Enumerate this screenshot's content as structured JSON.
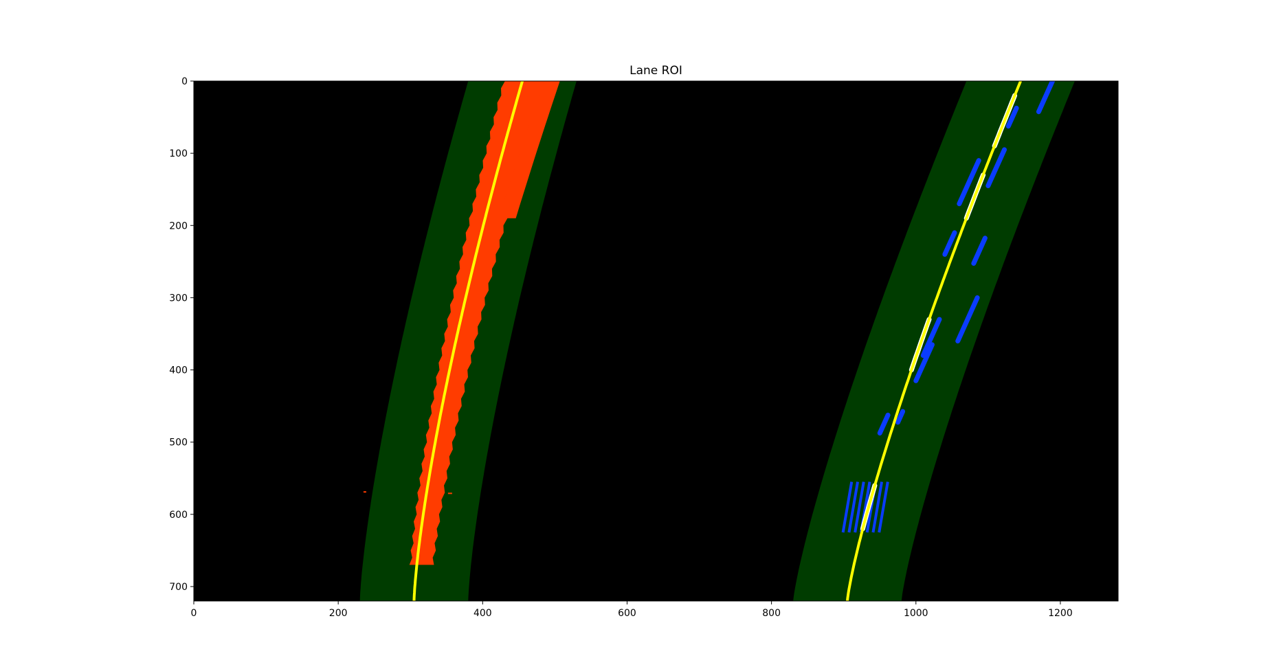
{
  "chart_data": {
    "type": "image",
    "title": "Lane ROI",
    "xlim": [
      0,
      1280
    ],
    "ylim": [
      720,
      0
    ],
    "x_ticks": [
      0,
      200,
      400,
      600,
      800,
      1000,
      1200
    ],
    "y_ticks": [
      0,
      100,
      200,
      300,
      400,
      500,
      600,
      700
    ],
    "x_tick_labels": [
      "0",
      "200",
      "400",
      "600",
      "800",
      "1000",
      "1200"
    ],
    "y_tick_labels": [
      "0",
      "100",
      "200",
      "300",
      "400",
      "500",
      "600",
      "700"
    ],
    "image_width": 1280,
    "image_height": 720,
    "colors": {
      "background": "#000000",
      "roi_band": "#003c00",
      "left_lane_pixels": "#ff3c00",
      "right_lane_pixels": "#0a3cff",
      "right_lane_highlight": "#ffffff",
      "fit_line": "#ffff00"
    },
    "roi_margin": 75,
    "left_fit": {
      "bottom": 305,
      "top": 455,
      "curve": 0.25
    },
    "right_fit": {
      "bottom": 905,
      "top": 1145,
      "curve": 0.15
    },
    "left_pixels": {
      "y_range": [
        0,
        675
      ],
      "x_offset": [
        -6,
        20
      ]
    },
    "right_pixel_blobs": [
      {
        "y": 20,
        "x": 1170,
        "len": 45
      },
      {
        "y": 50,
        "x": 1128,
        "len": 25
      },
      {
        "y": 120,
        "x": 1100,
        "len": 50
      },
      {
        "y": 140,
        "x": 1060,
        "len": 60
      },
      {
        "y": 235,
        "x": 1080,
        "len": 35
      },
      {
        "y": 225,
        "x": 1040,
        "len": 30
      },
      {
        "y": 330,
        "x": 1058,
        "len": 60
      },
      {
        "y": 355,
        "x": 1010,
        "len": 50
      },
      {
        "y": 390,
        "x": 1000,
        "len": 50
      },
      {
        "y": 475,
        "x": 950,
        "len": 25
      },
      {
        "y": 465,
        "x": 975,
        "len": 15
      }
    ],
    "right_pixel_cluster": {
      "y_range": [
        555,
        625
      ],
      "x_range": [
        905,
        955
      ]
    }
  }
}
